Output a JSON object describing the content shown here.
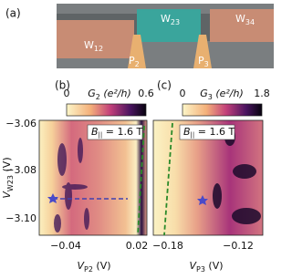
{
  "panel_a": {
    "label": "(a)",
    "gates": [
      "W",
      "W",
      "W",
      "P",
      "P"
    ],
    "gate_subscripts": [
      "12",
      "23",
      "34",
      "2",
      "3"
    ]
  },
  "panel_b": {
    "label": "(b)",
    "colorbar": {
      "symbol": "G",
      "subscript": "2",
      "unit": "(e²/h)",
      "ticks": [
        "0",
        "0.6"
      ]
    },
    "annotation": {
      "symbol": "B",
      "subscript": "||",
      "value": "= 1.6 T"
    },
    "x_axis": {
      "symbol": "V",
      "subscript": "P2",
      "unit": "(V)",
      "ticks": [
        "−0.04",
        "0.02"
      ]
    },
    "y_axis": {
      "symbol": "V",
      "subscript": "W23",
      "unit": "(V)",
      "ticks": [
        "−3.06",
        "−3.08",
        "−3.10"
      ]
    }
  },
  "panel_c": {
    "label": "(c)",
    "colorbar": {
      "symbol": "G",
      "subscript": "3",
      "unit": "(e²/h)",
      "ticks": [
        "0",
        "1.8"
      ]
    },
    "annotation": {
      "symbol": "B",
      "subscript": "||",
      "value": "= 1.6 T"
    },
    "x_axis": {
      "symbol": "V",
      "subscript": "P3",
      "unit": "(V)",
      "ticks": [
        "−0.18",
        "−0.12"
      ]
    }
  }
}
